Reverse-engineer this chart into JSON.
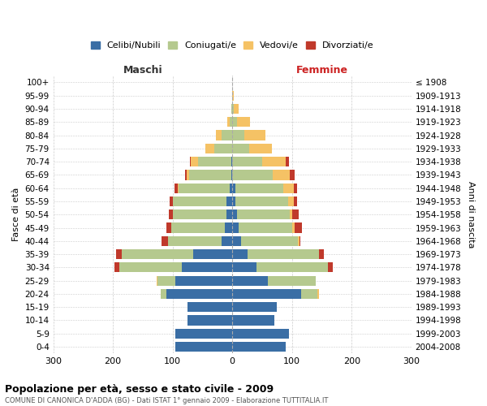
{
  "age_groups": [
    "0-4",
    "5-9",
    "10-14",
    "15-19",
    "20-24",
    "25-29",
    "30-34",
    "35-39",
    "40-44",
    "45-49",
    "50-54",
    "55-59",
    "60-64",
    "65-69",
    "70-74",
    "75-79",
    "80-84",
    "85-89",
    "90-94",
    "95-99",
    "100+"
  ],
  "birth_years": [
    "2004-2008",
    "1999-2003",
    "1994-1998",
    "1989-1993",
    "1984-1988",
    "1979-1983",
    "1974-1978",
    "1969-1973",
    "1964-1968",
    "1959-1963",
    "1954-1958",
    "1949-1953",
    "1944-1948",
    "1939-1943",
    "1934-1938",
    "1929-1933",
    "1924-1928",
    "1919-1923",
    "1914-1918",
    "1909-1913",
    "≤ 1908"
  ],
  "male": {
    "celibi": [
      95,
      95,
      75,
      75,
      110,
      95,
      85,
      65,
      18,
      12,
      10,
      10,
      5,
      2,
      2,
      0,
      0,
      0,
      0,
      0,
      0
    ],
    "coniugati": [
      0,
      0,
      0,
      0,
      10,
      30,
      105,
      120,
      90,
      90,
      90,
      90,
      85,
      70,
      55,
      30,
      18,
      5,
      2,
      0,
      0
    ],
    "vedovi": [
      0,
      0,
      0,
      0,
      0,
      2,
      0,
      0,
      0,
      0,
      0,
      0,
      2,
      5,
      12,
      15,
      10,
      3,
      0,
      0,
      0
    ],
    "divorziati": [
      0,
      0,
      0,
      0,
      0,
      0,
      8,
      10,
      10,
      8,
      7,
      5,
      5,
      2,
      2,
      0,
      0,
      0,
      0,
      0,
      0
    ]
  },
  "female": {
    "nubili": [
      90,
      95,
      70,
      75,
      115,
      60,
      40,
      25,
      15,
      10,
      8,
      5,
      5,
      0,
      0,
      0,
      0,
      0,
      0,
      0,
      0
    ],
    "coniugate": [
      0,
      0,
      0,
      0,
      28,
      80,
      120,
      120,
      95,
      90,
      88,
      88,
      80,
      68,
      50,
      28,
      20,
      8,
      2,
      0,
      0
    ],
    "vedove": [
      0,
      0,
      0,
      0,
      2,
      0,
      0,
      0,
      2,
      5,
      5,
      10,
      18,
      28,
      40,
      38,
      35,
      22,
      8,
      2,
      0
    ],
    "divorziate": [
      0,
      0,
      0,
      0,
      0,
      0,
      8,
      8,
      2,
      12,
      10,
      5,
      5,
      8,
      5,
      0,
      0,
      0,
      0,
      0,
      0
    ]
  },
  "colors": {
    "celibi": "#3A6EA5",
    "coniugati": "#B5C98E",
    "vedovi": "#F5C265",
    "divorziati": "#C0392B"
  },
  "xlim": 300,
  "title": "Popolazione per età, sesso e stato civile - 2009",
  "subtitle": "COMUNE DI CANONICA D'ADDA (BG) - Dati ISTAT 1° gennaio 2009 - Elaborazione TUTTITALIA.IT",
  "ylabel_left": "Fasce di età",
  "ylabel_right": "Anni di nascita",
  "xlabel_left": "Maschi",
  "xlabel_right": "Femmine",
  "legend_labels": [
    "Celibi/Nubili",
    "Coniugati/e",
    "Vedovi/e",
    "Divorziati/e"
  ],
  "background_color": "#ffffff",
  "grid_color": "#cccccc"
}
